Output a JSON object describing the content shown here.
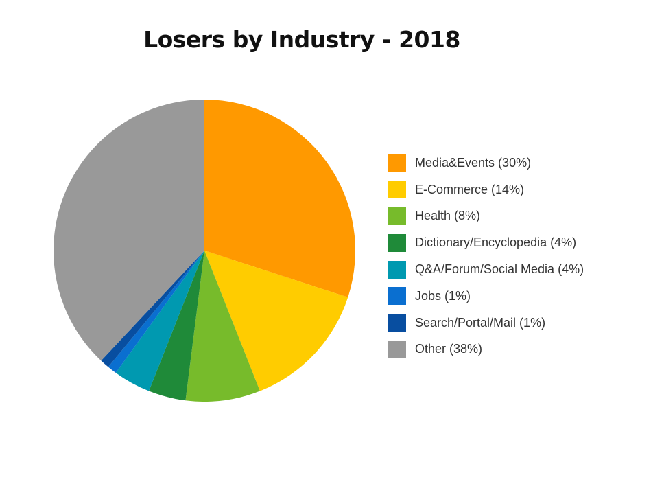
{
  "chart_data": {
    "type": "pie",
    "title": "Losers by Industry - 2018",
    "slices": [
      {
        "name": "Media&Events",
        "value": 30,
        "color": "#FF9900",
        "legend_label": "Media&Events (30%)"
      },
      {
        "name": "E-Commerce",
        "value": 14,
        "color": "#FFCC00",
        "legend_label": "E-Commerce (14%)"
      },
      {
        "name": "Health",
        "value": 8,
        "color": "#77BB2B",
        "legend_label": "Health (8%)"
      },
      {
        "name": "Dictionary/Encyclopedia",
        "value": 4,
        "color": "#1F8A39",
        "legend_label": "Dictionary/Encyclopedia (4%)"
      },
      {
        "name": "Q&A/Forum/Social Media",
        "value": 4,
        "color": "#0099B0",
        "legend_label": "Q&A/Forum/Social Media (4%)"
      },
      {
        "name": "Jobs",
        "value": 1,
        "color": "#0A6FD0",
        "legend_label": "Jobs (1%)"
      },
      {
        "name": "Search/Portal/Mail",
        "value": 1,
        "color": "#084EA0",
        "legend_label": "Search/Portal/Mail (1%)"
      },
      {
        "name": "Other",
        "value": 38,
        "color": "#999999",
        "legend_label": "Other (38%)"
      }
    ],
    "legend_position": "right"
  }
}
